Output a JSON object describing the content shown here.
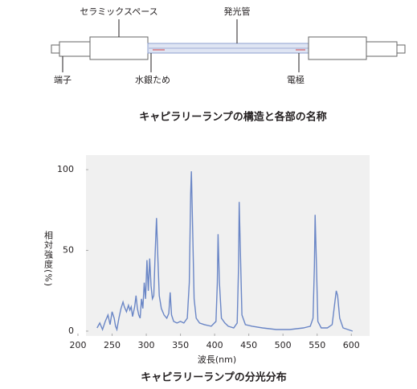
{
  "diagram": {
    "labels": [
      "セラミックスペース",
      "発光管",
      "端子",
      "水銀ため",
      "電極"
    ],
    "caption": "キャピラリーランプの構造と各部の名称"
  },
  "chart_data": {
    "type": "line",
    "title": "キャピラリーランプの分光分布",
    "x_label": "波長(nm)",
    "y_label": "相対強度(%)",
    "color": "#6a86c6",
    "xlim": [
      200,
      615
    ],
    "ylim": [
      -3,
      109
    ],
    "xticks": [
      200,
      250,
      300,
      350,
      400,
      450,
      500,
      550,
      600
    ],
    "yticks": [
      0,
      50,
      100
    ],
    "x": [
      228,
      232,
      236,
      240,
      244,
      247,
      250,
      253,
      255,
      257,
      260,
      263,
      266,
      268,
      271,
      274,
      276,
      278,
      280,
      283,
      285,
      287,
      289,
      291,
      293,
      295,
      297,
      299,
      301,
      303,
      305,
      307,
      309,
      311,
      313,
      315,
      317,
      319,
      322,
      326,
      330,
      333,
      335,
      337,
      340,
      345,
      350,
      355,
      360,
      363,
      365,
      366,
      368,
      370,
      373,
      378,
      385,
      395,
      402,
      404,
      405,
      407,
      410,
      415,
      420,
      428,
      433,
      435,
      436,
      438,
      440,
      445,
      455,
      470,
      490,
      510,
      530,
      540,
      544,
      546,
      547,
      549,
      551,
      556,
      565,
      572,
      576,
      578,
      580,
      583,
      588,
      595,
      602
    ],
    "values": [
      2,
      5,
      1,
      6,
      10,
      4,
      12,
      8,
      3,
      1,
      8,
      14,
      18,
      15,
      12,
      16,
      13,
      15,
      9,
      15,
      22,
      14,
      10,
      8,
      20,
      14,
      30,
      20,
      44,
      25,
      45,
      28,
      20,
      22,
      48,
      70,
      45,
      22,
      14,
      10,
      8,
      11,
      24,
      10,
      6,
      5,
      6,
      5,
      8,
      30,
      85,
      99,
      60,
      20,
      8,
      5,
      4,
      3,
      6,
      30,
      60,
      30,
      8,
      5,
      3,
      2,
      5,
      40,
      80,
      45,
      10,
      4,
      3,
      2,
      1,
      1,
      2,
      3,
      8,
      40,
      72,
      40,
      6,
      2,
      2,
      4,
      18,
      25,
      22,
      8,
      2,
      1,
      0
    ]
  }
}
